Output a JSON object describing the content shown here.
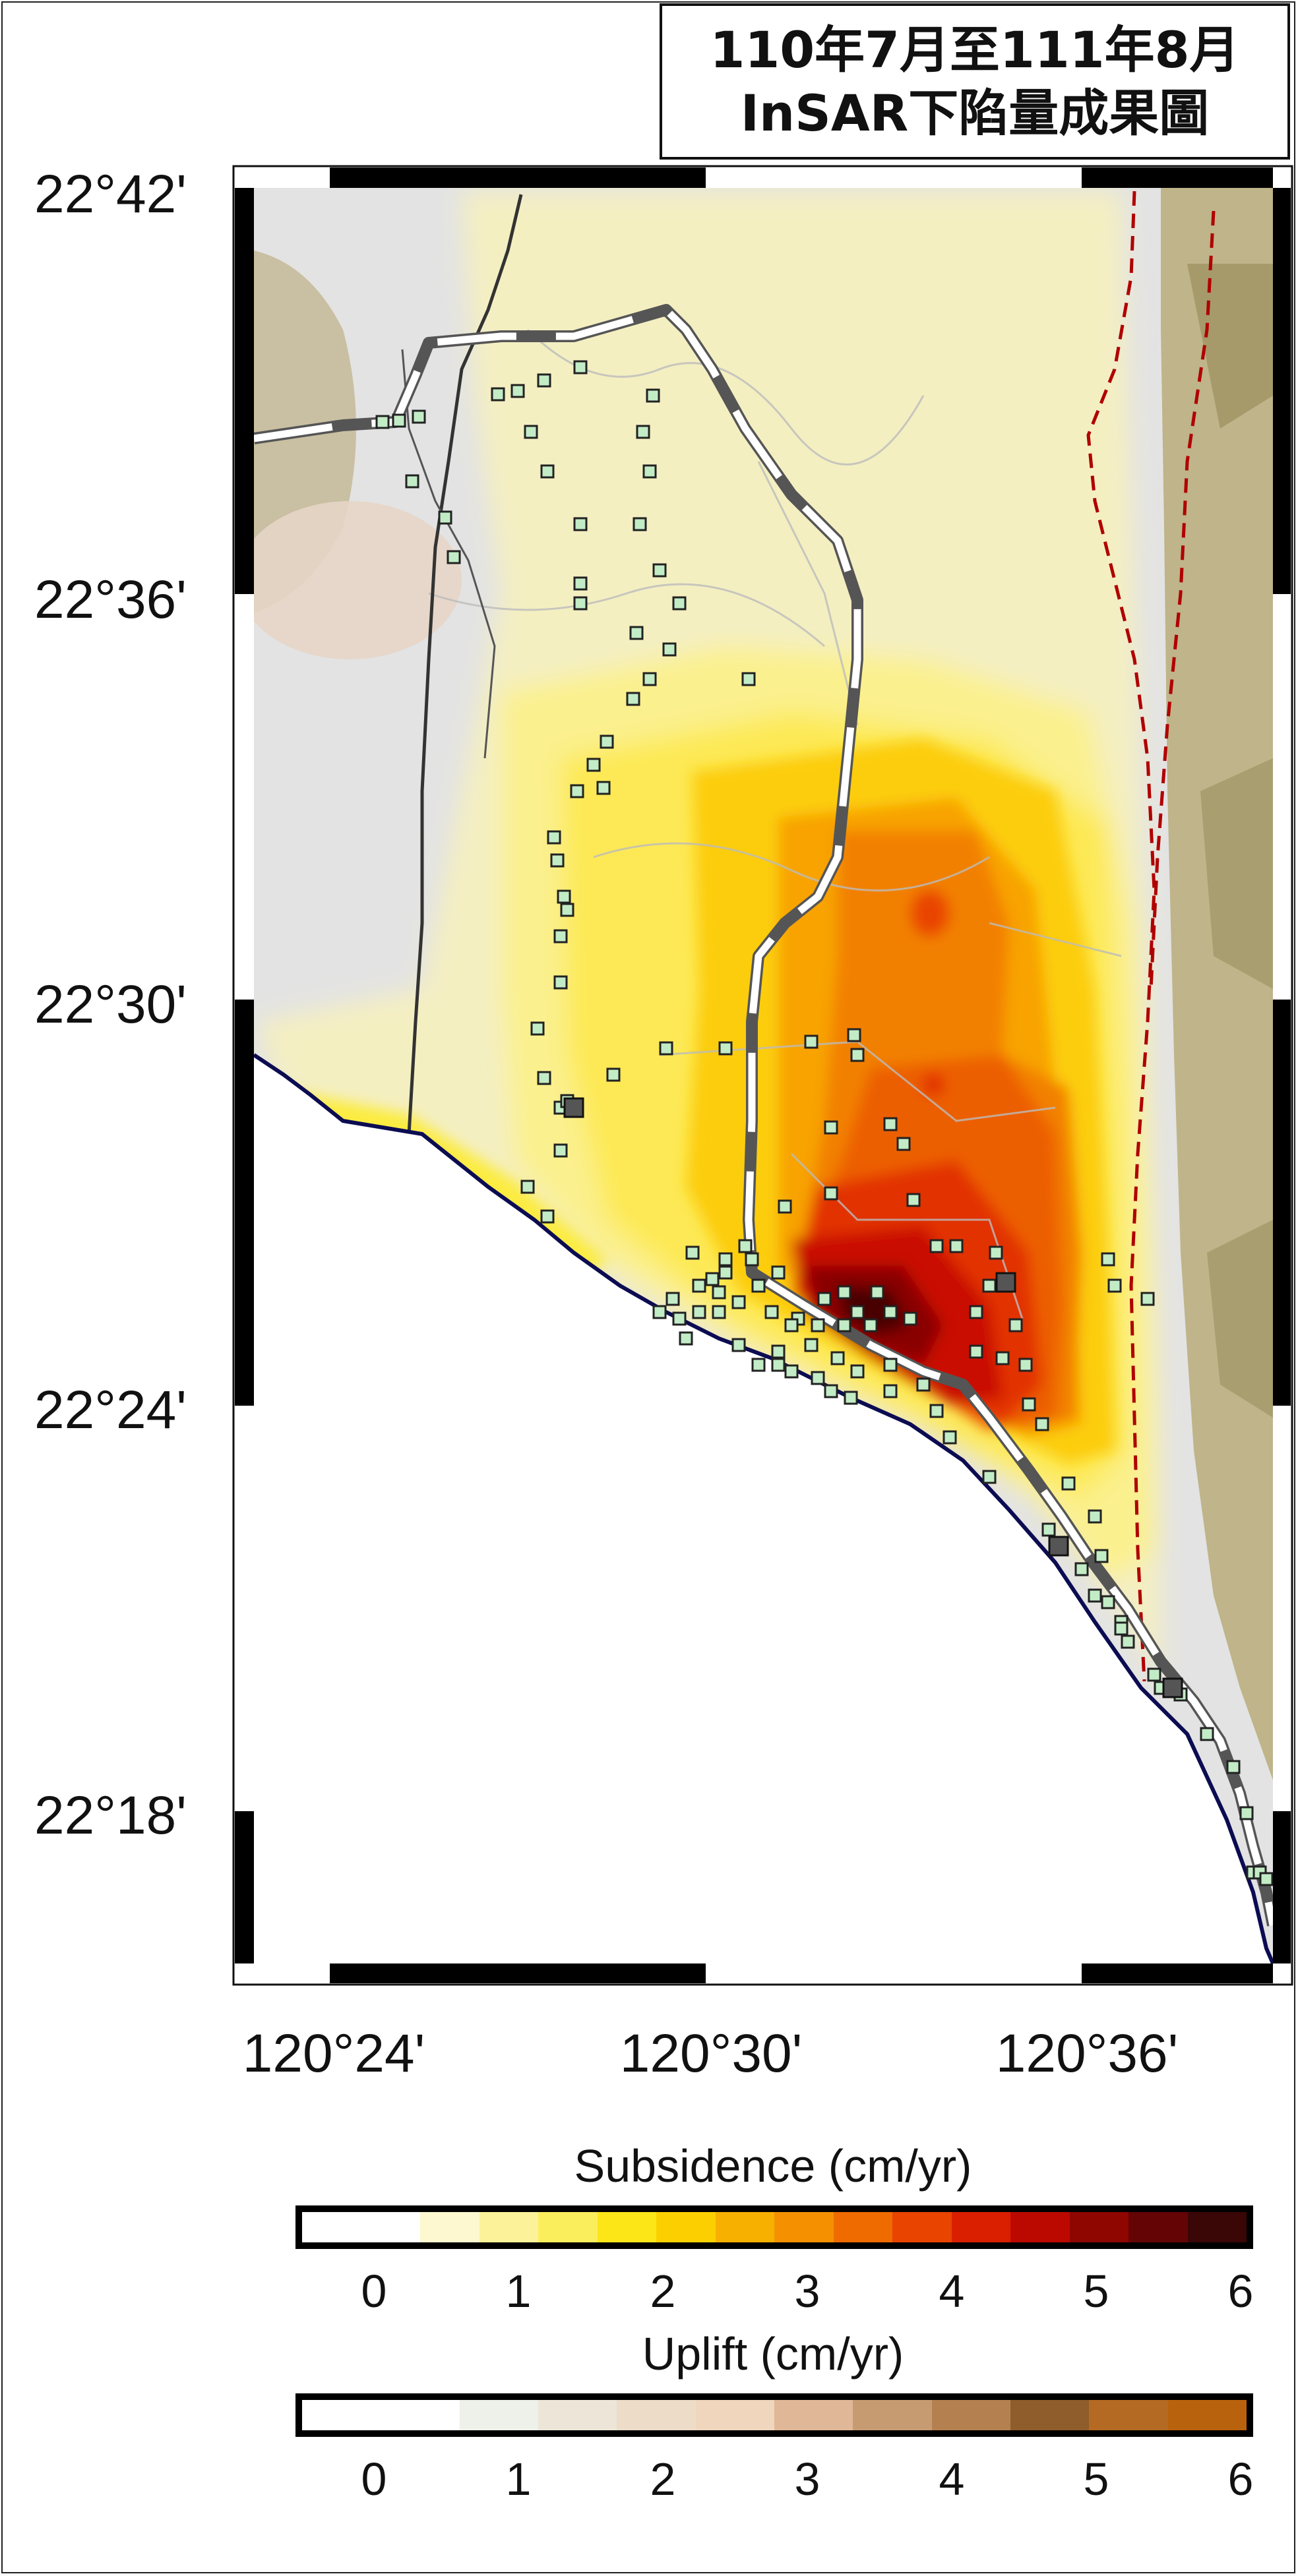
{
  "title": {
    "line1": "110年7月至111年8月",
    "line2": "InSAR下陷量成果圖"
  },
  "latitude_labels": [
    "22°42'",
    "22°36'",
    "22°30'",
    "22°24'",
    "22°18'"
  ],
  "longitude_labels": [
    "120°24'",
    "120°30'",
    "120°36'"
  ],
  "subsidence_scale": {
    "title": "Subsidence (cm/yr)",
    "ticks": [
      "0",
      "1",
      "2",
      "3",
      "4",
      "5",
      "6"
    ],
    "colors": [
      "#ffffff",
      "#ffffff",
      "#fdf8d0",
      "#fcf29a",
      "#fbee5c",
      "#fce618",
      "#fcd000",
      "#f8b000",
      "#f59000",
      "#ef6b00",
      "#e94400",
      "#d91f00",
      "#bb0900",
      "#8f0600",
      "#640405",
      "#3a0606"
    ]
  },
  "uplift_scale": {
    "title": "Uplift (cm/yr)",
    "ticks": [
      "0",
      "1",
      "2",
      "3",
      "4",
      "5",
      "6"
    ],
    "colors": [
      "#ffffff",
      "#ffffff",
      "#eef0ea",
      "#ede6d8",
      "#ecdcc8",
      "#efd6bd",
      "#e0b898",
      "#c79b72",
      "#b5804f",
      "#8f5c2b",
      "#b46a22",
      "#b9620d"
    ]
  },
  "map_colors": {
    "sea": "#ffffff",
    "coast": "#0c0c52",
    "terrain": "#d9d9d9",
    "railway_dark": "#5a5a5a",
    "railway_light": "#ffffff",
    "fault": "#b00000",
    "station_fill": "#c2ecc6",
    "station_stroke": "#222222",
    "station_dark": "#555555"
  },
  "legend_icons": [
    "station-marker-icon",
    "fault-line-icon",
    "railway-line-icon"
  ]
}
